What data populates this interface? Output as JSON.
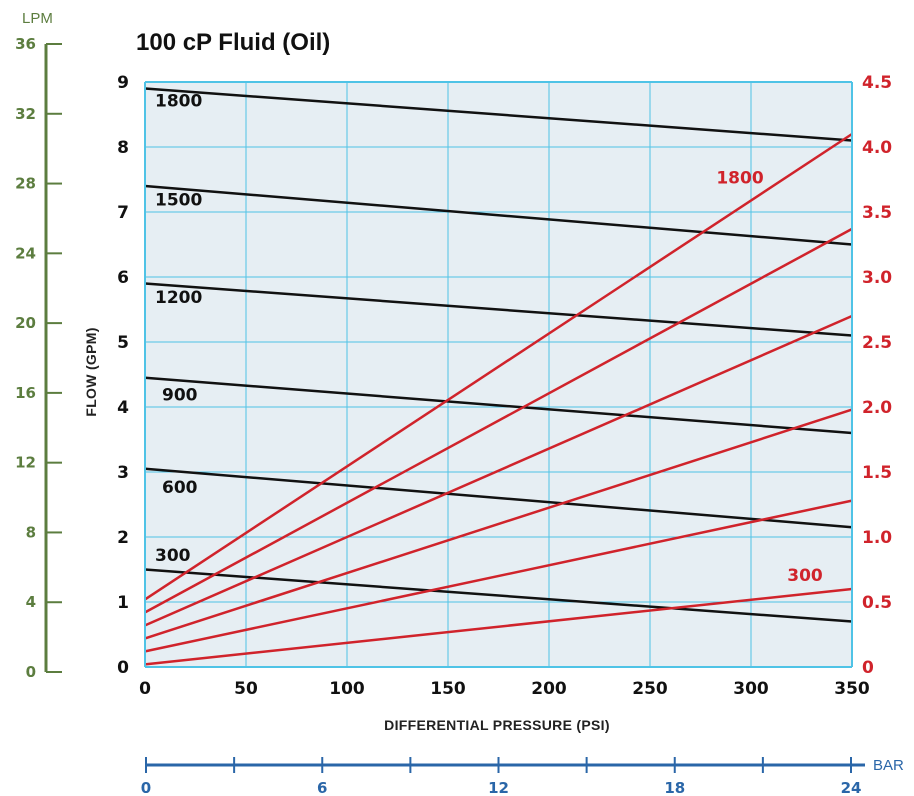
{
  "chart_data": {
    "type": "line",
    "title": "100 cP Fluid (Oil)",
    "xlabel": "DIFFERENTIAL PRESSURE  (PSI)",
    "ylabel": "FLOW  (GPM)",
    "xlim": [
      0,
      350
    ],
    "ylim": [
      0,
      9
    ],
    "x_ticks": [
      0,
      50,
      100,
      150,
      200,
      250,
      300,
      350
    ],
    "y_ticks": [
      0,
      1,
      2,
      3,
      4,
      5,
      6,
      7,
      8,
      9
    ],
    "grid": true,
    "flow_series": [
      {
        "name": "1800",
        "x": [
          0,
          350
        ],
        "y": [
          8.9,
          8.1
        ]
      },
      {
        "name": "1500",
        "x": [
          0,
          350
        ],
        "y": [
          7.4,
          6.5
        ]
      },
      {
        "name": "1200",
        "x": [
          0,
          350
        ],
        "y": [
          5.9,
          5.1
        ]
      },
      {
        "name": "900",
        "x": [
          0,
          350
        ],
        "y": [
          4.45,
          3.6
        ]
      },
      {
        "name": "600",
        "x": [
          0,
          350
        ],
        "y": [
          3.05,
          2.15
        ]
      },
      {
        "name": "300",
        "x": [
          0,
          350
        ],
        "y": [
          1.5,
          0.7
        ]
      }
    ],
    "power_axis": {
      "label_top": "",
      "ticks": [
        "0",
        "0.5",
        "1.0",
        "1.5",
        "2.0",
        "2.5",
        "3.0",
        "3.5",
        "4.0",
        "4.5"
      ],
      "ylim": [
        0,
        4.5
      ]
    },
    "power_series": [
      {
        "name": "1800",
        "x": [
          0,
          350
        ],
        "y": [
          0.52,
          4.1
        ]
      },
      {
        "name": "",
        "x": [
          0,
          350
        ],
        "y": [
          0.42,
          3.37
        ]
      },
      {
        "name": "",
        "x": [
          0,
          350
        ],
        "y": [
          0.32,
          2.7
        ]
      },
      {
        "name": "",
        "x": [
          0,
          350
        ],
        "y": [
          0.22,
          1.98
        ]
      },
      {
        "name": "",
        "x": [
          0,
          350
        ],
        "y": [
          0.12,
          1.28
        ]
      },
      {
        "name": "300",
        "x": [
          0,
          350
        ],
        "y": [
          0.02,
          0.6
        ]
      }
    ],
    "lpm_axis": {
      "unit": "LPM",
      "ticks": [
        "0",
        "4",
        "8",
        "12",
        "16",
        "20",
        "24",
        "28",
        "32",
        "36"
      ]
    },
    "bar_axis": {
      "unit": "BAR",
      "ticks": [
        "0",
        "6",
        "12",
        "18",
        "24"
      ]
    },
    "colors": {
      "flow": "#111111",
      "power": "#d0232b",
      "grid": "#4fc3e6",
      "plot_bg": "#e6eef3",
      "lpm_axis": "#5c7d3f",
      "bar_axis": "#2a66a8"
    }
  }
}
